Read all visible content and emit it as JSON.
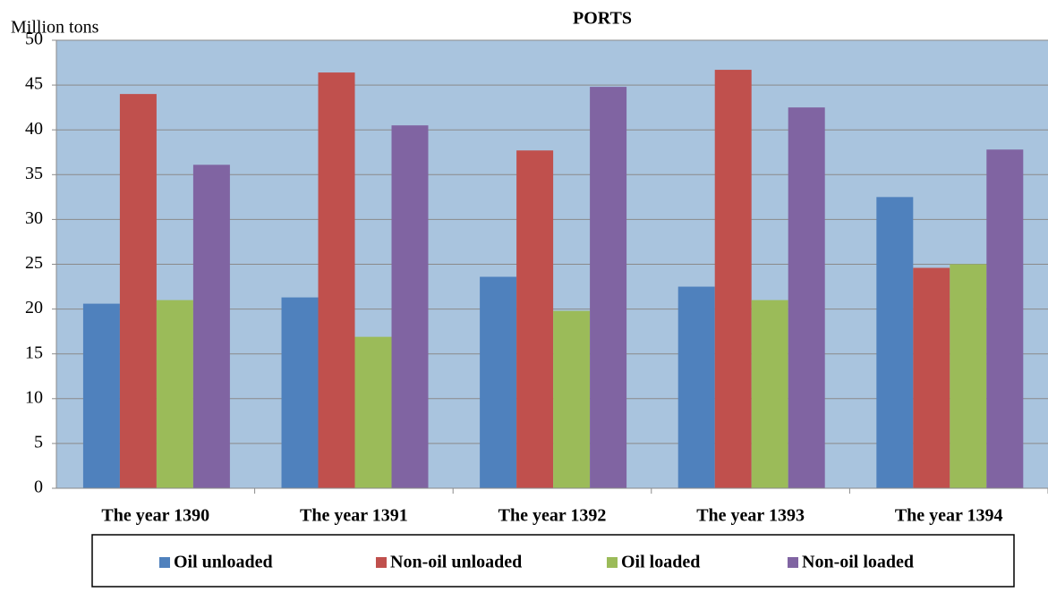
{
  "chart_data": {
    "type": "bar",
    "title": "PORTS",
    "y_label": "Million tons",
    "categories": [
      "The year 1390",
      "The year 1391",
      "The year 1392",
      "The year 1393",
      "The year 1394"
    ],
    "series": [
      {
        "name": "Oil unloaded",
        "color": "#4f81bd",
        "values": [
          20.6,
          21.3,
          23.6,
          22.5,
          32.5
        ]
      },
      {
        "name": "Non-oil unloaded",
        "color": "#c0504d",
        "values": [
          44,
          46.4,
          37.7,
          46.7,
          24.6
        ]
      },
      {
        "name": "Oil loaded",
        "color": "#9bbb59",
        "values": [
          21,
          16.9,
          19.8,
          21,
          25
        ]
      },
      {
        "name": "Non-oil loaded",
        "color": "#8064a2",
        "values": [
          36.1,
          40.5,
          44.8,
          42.5,
          37.8
        ]
      }
    ],
    "ylim": [
      0,
      50
    ],
    "yticks": [
      0,
      5,
      10,
      15,
      20,
      25,
      30,
      35,
      40,
      45,
      50
    ],
    "grid": true,
    "legend": "bottom"
  }
}
